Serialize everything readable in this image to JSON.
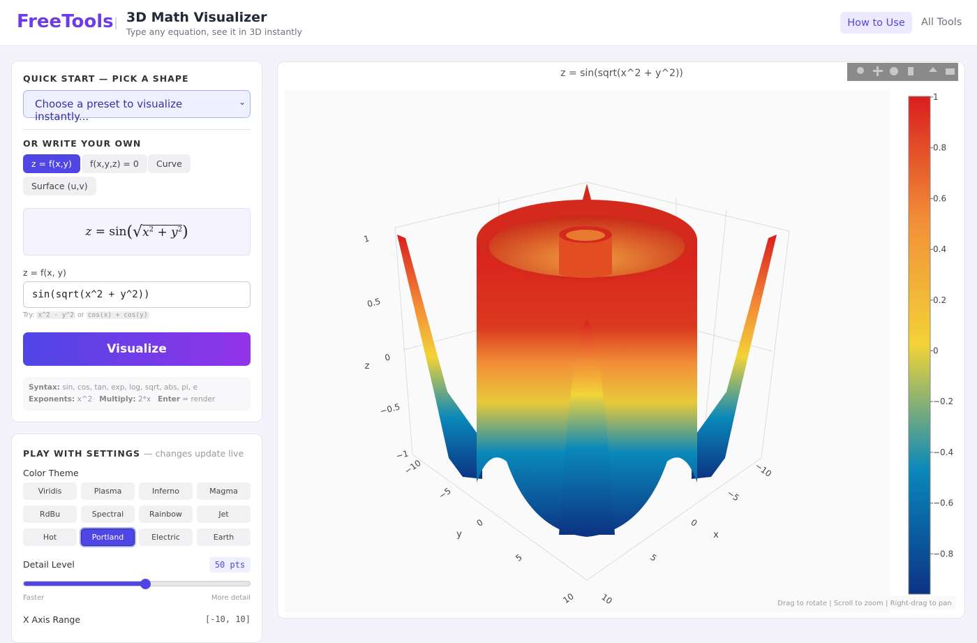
{
  "header": {
    "brand": "FreeTools",
    "title": "3D Math Visualizer",
    "subtitle": "Type any equation, see it in 3D instantly",
    "nav": [
      "How to Use",
      "All Tools"
    ]
  },
  "quick_start": {
    "heading": "QUICK START — PICK A SHAPE",
    "select": "Choose a preset to visualize instantly..."
  },
  "editor": {
    "heading": "OR WRITE YOUR OWN",
    "modes": [
      "z = f(x,y)",
      "f(x,y,z) = 0",
      "Curve",
      "Surface (u,v)"
    ],
    "formula": {
      "lhs": "z",
      "eq": "=",
      "fn": "sin",
      "var1": "x",
      "exp1": "2",
      "plus": "+",
      "var2": "y",
      "exp2": "2"
    },
    "input_label": "z = f(x, y)",
    "input_value": "sin(sqrt(x^2 + y^2))",
    "hint": {
      "prefix": "Try:",
      "example1": "x^2 - y^2",
      "joiner": "or",
      "example2": "cos(x) + cos(y)"
    },
    "button": "Visualize",
    "syntax": {
      "label1": "Syntax:",
      "text1": "sin, cos, tan, exp, log, sqrt, abs, pi, e",
      "label2": "Exponents:",
      "text2": "x^2",
      "label3": "Multiply:",
      "text3": "2*x",
      "label4": "Enter",
      "text4": "= render"
    }
  },
  "settings": {
    "heading": "PLAY WITH SETTINGS",
    "note": "— changes update live",
    "color_theme_label": "Color Theme",
    "themes": [
      "Viridis",
      "Plasma",
      "Inferno",
      "Magma",
      "RdBu",
      "Spectral",
      "Rainbow",
      "Jet",
      "Hot",
      "Portland",
      "Electric",
      "Earth"
    ],
    "selected_theme": "Portland",
    "detail_label": "Detail Level",
    "detail_value": "50 pts",
    "slider_min_label": "Faster",
    "slider_max_label": "More detail",
    "x_range_label": "X Axis Range",
    "x_range_value": "[-10, 10]"
  },
  "plot": {
    "title": "z = sin(sqrt(x^2 + y^2))",
    "colorbar_ticks": [
      "1",
      "0.8",
      "0.6",
      "0.4",
      "0.2",
      "0",
      "−0.2",
      "−0.4",
      "−0.6",
      "−0.8"
    ],
    "z_axis": {
      "label": "z",
      "ticks": [
        "1",
        "0.5",
        "0",
        "−0.5",
        "−1"
      ]
    },
    "y_axis": {
      "label": "y",
      "ticks": [
        "−10",
        "−5",
        "0",
        "5",
        "10"
      ]
    },
    "x_axis": {
      "label": "x",
      "ticks": [
        "−10",
        "−5",
        "0",
        "5",
        "10"
      ]
    },
    "help": "Drag to rotate | Scroll to zoom | Right-drag to pan"
  }
}
